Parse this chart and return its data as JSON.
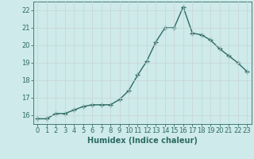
{
  "x": [
    0,
    1,
    2,
    3,
    4,
    5,
    6,
    7,
    8,
    9,
    10,
    11,
    12,
    13,
    14,
    15,
    16,
    17,
    18,
    19,
    20,
    21,
    22,
    23
  ],
  "y": [
    15.8,
    15.8,
    16.1,
    16.1,
    16.3,
    16.5,
    16.6,
    16.6,
    16.6,
    16.9,
    17.4,
    18.3,
    19.1,
    20.2,
    21.0,
    21.0,
    22.2,
    20.7,
    20.6,
    20.3,
    19.8,
    19.4,
    19.0,
    18.5
  ],
  "line_color": "#2e6b65",
  "marker": "+",
  "marker_size": 4,
  "bg_color": "#ceeaea",
  "grid_color": "#b8d8d8",
  "xlabel": "Humidex (Indice chaleur)",
  "ylabel": "",
  "xlim": [
    -0.5,
    23.5
  ],
  "ylim": [
    15.5,
    22.5
  ],
  "yticks": [
    16,
    17,
    18,
    19,
    20,
    21,
    22
  ],
  "xticks": [
    0,
    1,
    2,
    3,
    4,
    5,
    6,
    7,
    8,
    9,
    10,
    11,
    12,
    13,
    14,
    15,
    16,
    17,
    18,
    19,
    20,
    21,
    22,
    23
  ],
  "xlabel_fontsize": 7,
  "tick_fontsize": 6,
  "line_width": 1.0
}
